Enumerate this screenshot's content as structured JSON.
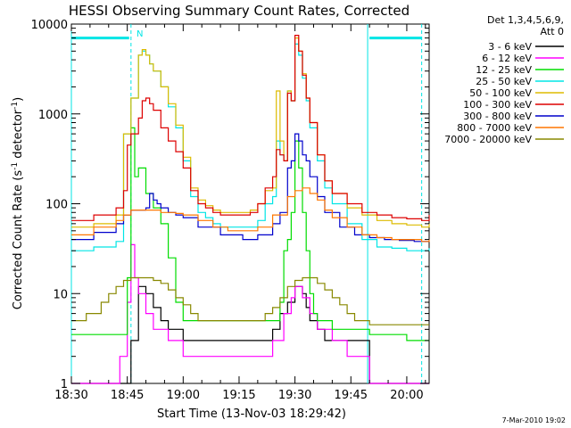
{
  "chart_data": {
    "type": "line",
    "title": "HESSI Observing Summary Count Rates, Corrected",
    "xlabel": "Start Time (13-Nov-03 18:29:42)",
    "ylabel_main": "Corrected Count Rate (s",
    "ylabel_sup": "-1",
    "ylabel_tail": " detector",
    "ylabel_sup2": "-1",
    "ylabel_end": ")",
    "footer": "7-Mar-2010 19:02",
    "legend_header": [
      "Det 1,3,4,5,6,9,",
      "Att 0"
    ],
    "night_marker": "N",
    "y_scale": "log",
    "ylim": [
      1,
      10000
    ],
    "xlim_minutes": [
      0,
      96
    ],
    "x_ticks": [
      {
        "t": 0,
        "label": "18:30"
      },
      {
        "t": 15,
        "label": "18:45"
      },
      {
        "t": 30,
        "label": "19:00"
      },
      {
        "t": 45,
        "label": "19:15"
      },
      {
        "t": 60,
        "label": "19:30"
      },
      {
        "t": 75,
        "label": "19:45"
      },
      {
        "t": 90,
        "label": "20:00"
      }
    ],
    "y_ticks": [
      {
        "v": 1,
        "label": "1"
      },
      {
        "v": 10,
        "label": "10"
      },
      {
        "v": 100,
        "label": "100"
      },
      {
        "v": 1000,
        "label": "1000"
      },
      {
        "v": 10000,
        "label": "10000"
      }
    ],
    "observing_bars": [
      {
        "start": 0,
        "end": 15.5,
        "value": 7000,
        "color": "#00e5e5"
      },
      {
        "start": 80,
        "end": 94,
        "value": 7000,
        "color": "#00e5e5"
      }
    ],
    "vlines": [
      {
        "t": 0,
        "style": "solid",
        "color": "#00e5e5"
      },
      {
        "t": 16,
        "style": "dashed",
        "color": "#00e5e5"
      },
      {
        "t": 79.5,
        "style": "solid",
        "color": "#00e5e5"
      },
      {
        "t": 94,
        "style": "dashed",
        "color": "#00e5e5"
      }
    ],
    "series": [
      {
        "name": "3 - 6 keV",
        "color": "#000000",
        "x": [
          0,
          14,
          15,
          16,
          18,
          20,
          22,
          24,
          26,
          30,
          34,
          40,
          46,
          50,
          54,
          56,
          58,
          60,
          62,
          63,
          64,
          66,
          68,
          72,
          76,
          80,
          85,
          90,
          94,
          96
        ],
        "y": [
          1,
          1,
          1,
          3,
          12,
          10,
          7,
          5,
          4,
          3,
          3,
          3,
          3,
          3,
          4,
          6,
          8,
          12,
          10,
          7,
          5,
          4,
          3,
          3,
          3,
          1,
          1,
          1,
          1,
          1
        ]
      },
      {
        "name": "6 - 12 keV",
        "color": "#ff00ff",
        "x": [
          0,
          12,
          13,
          15,
          16,
          17,
          18,
          20,
          22,
          26,
          30,
          34,
          40,
          46,
          50,
          54,
          57,
          59,
          60,
          62,
          64,
          66,
          70,
          74,
          78,
          80,
          85,
          90,
          94,
          96
        ],
        "y": [
          1,
          1,
          2,
          8,
          35,
          15,
          10,
          6,
          4,
          3,
          2,
          2,
          2,
          2,
          2,
          3,
          6,
          9,
          12,
          9,
          6,
          4,
          3,
          2,
          2,
          1,
          1,
          1,
          1,
          1
        ]
      },
      {
        "name": "12 - 25 keV",
        "color": "#00dd00",
        "x": [
          0,
          12,
          13,
          15,
          16,
          17,
          18,
          20,
          22,
          24,
          26,
          28,
          30,
          32,
          34,
          38,
          42,
          46,
          50,
          54,
          56,
          57,
          58,
          59,
          60,
          61,
          62,
          63,
          64,
          65,
          66,
          68,
          70,
          74,
          80,
          85,
          90,
          94,
          96
        ],
        "y": [
          3.5,
          3.5,
          3.5,
          15,
          700,
          200,
          250,
          130,
          90,
          60,
          25,
          8,
          5,
          5,
          5,
          5,
          5,
          5,
          5,
          5,
          8,
          30,
          40,
          80,
          500,
          250,
          80,
          30,
          10,
          6,
          5,
          5,
          4,
          4,
          3.5,
          3.5,
          3,
          3,
          3
        ]
      },
      {
        "name": "25 - 50 keV",
        "color": "#00e5e5",
        "x": [
          0,
          6,
          12,
          14,
          16,
          18,
          19,
          20,
          21,
          22,
          24,
          26,
          28,
          30,
          32,
          34,
          36,
          38,
          40,
          44,
          48,
          50,
          52,
          54,
          55,
          56,
          57,
          58,
          59,
          60,
          61,
          62,
          63,
          64,
          66,
          68,
          70,
          74,
          78,
          82,
          86,
          90,
          94,
          96
        ],
        "y": [
          30,
          33,
          38,
          600,
          1500,
          4500,
          5000,
          4500,
          3600,
          3000,
          2000,
          1200,
          700,
          300,
          120,
          80,
          70,
          60,
          55,
          55,
          55,
          65,
          100,
          120,
          500,
          350,
          300,
          1800,
          1400,
          6000,
          4500,
          2500,
          1400,
          700,
          300,
          150,
          100,
          60,
          40,
          33,
          32,
          30,
          30,
          32
        ]
      },
      {
        "name": "50 - 100 keV",
        "color": "#ddbb00",
        "x": [
          0,
          6,
          12,
          14,
          16,
          18,
          19,
          20,
          21,
          22,
          24,
          26,
          28,
          30,
          32,
          34,
          36,
          38,
          40,
          44,
          48,
          50,
          52,
          54,
          55,
          56,
          57,
          58,
          59,
          60,
          61,
          62,
          63,
          64,
          66,
          68,
          70,
          74,
          78,
          82,
          86,
          90,
          94,
          96
        ],
        "y": [
          55,
          60,
          75,
          600,
          1500,
          4500,
          5200,
          4500,
          3600,
          3000,
          2000,
          1300,
          750,
          330,
          150,
          110,
          95,
          85,
          80,
          80,
          85,
          100,
          140,
          150,
          1800,
          500,
          300,
          1800,
          1400,
          7000,
          5000,
          2800,
          1500,
          800,
          350,
          180,
          130,
          90,
          75,
          65,
          60,
          58,
          55,
          60
        ]
      },
      {
        "name": "100 - 300 keV",
        "color": "#dd0000",
        "x": [
          0,
          6,
          12,
          14,
          15,
          16,
          18,
          19,
          20,
          21,
          22,
          24,
          26,
          28,
          30,
          32,
          34,
          36,
          38,
          40,
          44,
          48,
          50,
          52,
          54,
          55,
          56,
          57,
          58,
          59,
          60,
          61,
          62,
          63,
          64,
          66,
          68,
          70,
          74,
          78,
          82,
          86,
          90,
          94,
          96
        ],
        "y": [
          65,
          75,
          90,
          140,
          450,
          600,
          900,
          1400,
          1500,
          1300,
          1100,
          700,
          500,
          380,
          250,
          140,
          100,
          90,
          80,
          75,
          75,
          80,
          100,
          150,
          200,
          400,
          350,
          300,
          1700,
          1400,
          7500,
          5000,
          2700,
          1500,
          800,
          350,
          180,
          130,
          100,
          80,
          75,
          70,
          68,
          65,
          75
        ]
      },
      {
        "name": "300 - 800 keV",
        "color": "#0000cc",
        "x": [
          0,
          6,
          12,
          14,
          16,
          18,
          20,
          21,
          22,
          23,
          24,
          26,
          28,
          30,
          34,
          40,
          46,
          50,
          54,
          56,
          58,
          59,
          60,
          61,
          62,
          63,
          64,
          66,
          68,
          72,
          76,
          80,
          84,
          88,
          92,
          96
        ],
        "y": [
          40,
          48,
          60,
          75,
          85,
          85,
          90,
          130,
          110,
          100,
          90,
          80,
          75,
          70,
          55,
          45,
          40,
          45,
          60,
          80,
          250,
          300,
          600,
          500,
          350,
          300,
          200,
          120,
          80,
          55,
          45,
          42,
          40,
          39,
          38,
          38
        ]
      },
      {
        "name": "800 - 7000 keV",
        "color": "#ff7700",
        "x": [
          0,
          6,
          12,
          14,
          16,
          18,
          20,
          24,
          28,
          30,
          34,
          38,
          42,
          46,
          50,
          54,
          58,
          60,
          62,
          64,
          66,
          68,
          70,
          74,
          78,
          82,
          86,
          90,
          94,
          96
        ],
        "y": [
          45,
          55,
          65,
          75,
          85,
          85,
          85,
          80,
          78,
          75,
          65,
          55,
          50,
          50,
          55,
          75,
          120,
          140,
          150,
          130,
          110,
          85,
          70,
          55,
          45,
          42,
          40,
          40,
          38,
          40
        ]
      },
      {
        "name": "7000 - 20000 keV",
        "color": "#888800",
        "x": [
          0,
          4,
          8,
          10,
          12,
          14,
          16,
          18,
          20,
          22,
          24,
          26,
          28,
          30,
          32,
          34,
          38,
          42,
          46,
          50,
          52,
          54,
          56,
          58,
          60,
          62,
          64,
          66,
          68,
          70,
          72,
          74,
          76,
          80,
          84,
          88,
          92,
          96
        ],
        "y": [
          5,
          6,
          8,
          10,
          12,
          14,
          15,
          15,
          15,
          14,
          13,
          11,
          9,
          7.5,
          6,
          5,
          5,
          5,
          5,
          5,
          6,
          7,
          9,
          12,
          14,
          15,
          15,
          13,
          11,
          9,
          7.5,
          6,
          5,
          4.5,
          4.5,
          4.5,
          4.5,
          4.5
        ]
      }
    ]
  }
}
